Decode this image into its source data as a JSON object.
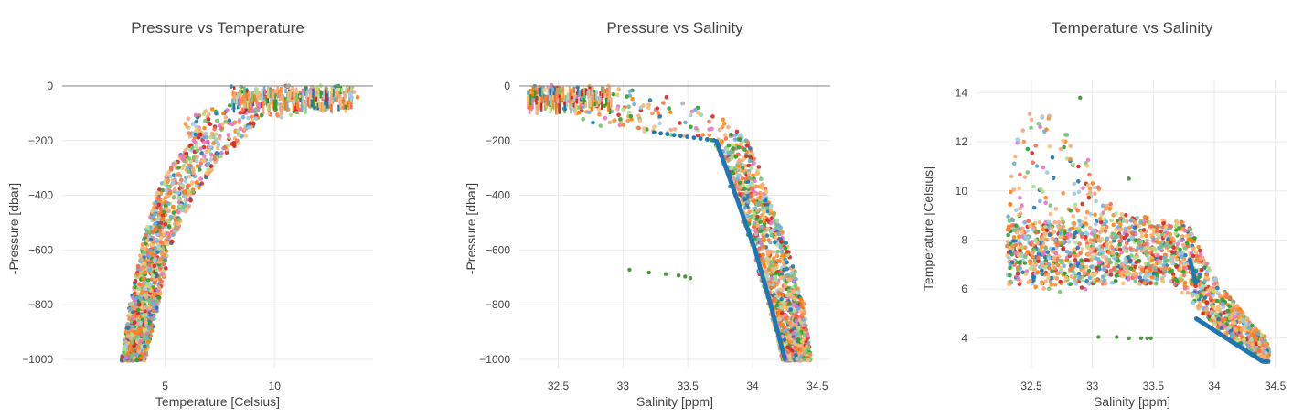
{
  "chart_data": [
    {
      "type": "scatter",
      "title": "Pressure vs Temperature",
      "xlabel": "Temperature [Celsius]",
      "ylabel": "-Pressure [dbar]",
      "xlim": [
        0.3,
        14.5
      ],
      "ylim": [
        -1030,
        20
      ],
      "xticks": [
        5,
        10
      ],
      "yticks": [
        0,
        -200,
        -400,
        -600,
        -800,
        -1000
      ],
      "xticklabels": [
        "5",
        "10"
      ],
      "yticklabels": [
        "0",
        "−200",
        "−400",
        "−600",
        "−800",
        "−1000"
      ],
      "grid": true,
      "reference_line": {
        "y": 0
      },
      "envelope": [
        {
          "y": -1000,
          "xmin": 3.0,
          "xmax": 4.1
        },
        {
          "y": -800,
          "xmin": 3.4,
          "xmax": 4.7
        },
        {
          "y": -600,
          "xmin": 3.9,
          "xmax": 5.2
        },
        {
          "y": -400,
          "xmin": 4.6,
          "xmax": 6.3
        },
        {
          "y": -300,
          "xmin": 5.2,
          "xmax": 7.2
        },
        {
          "y": -200,
          "xmin": 6.2,
          "xmax": 8.5
        },
        {
          "y": -120,
          "xmin": 5.8,
          "xmax": 9.5
        },
        {
          "y": -80,
          "xmin": 7.0,
          "xmax": 13.5
        },
        {
          "y": -60,
          "xmin": 8.2,
          "xmax": 14.0
        },
        {
          "y": 0,
          "xmin": 8.0,
          "xmax": 13.5
        }
      ],
      "outliers": []
    },
    {
      "type": "scatter",
      "title": "Pressure vs Salinity",
      "xlabel": "Salinity [ppm]",
      "ylabel": "-Pressure [dbar]",
      "xlim": [
        32.2,
        34.6
      ],
      "ylim": [
        -1030,
        20
      ],
      "xticks": [
        32.5,
        33,
        33.5,
        34,
        34.5
      ],
      "yticks": [
        0,
        -200,
        -400,
        -600,
        -800,
        -1000
      ],
      "xticklabels": [
        "32.5",
        "33",
        "33.5",
        "34",
        "34.5"
      ],
      "yticklabels": [
        "0",
        "−200",
        "−400",
        "−600",
        "−800",
        "−1000"
      ],
      "grid": true,
      "reference_line": {
        "y": 0
      },
      "envelope": [
        {
          "y": -1000,
          "xmin": 34.23,
          "xmax": 34.45
        },
        {
          "y": -800,
          "xmin": 34.12,
          "xmax": 34.4
        },
        {
          "y": -600,
          "xmin": 34.0,
          "xmax": 34.28
        },
        {
          "y": -400,
          "xmin": 33.85,
          "xmax": 34.12
        },
        {
          "y": -200,
          "xmin": 33.7,
          "xmax": 33.98
        },
        {
          "y": -150,
          "xmin": 32.9,
          "xmax": 33.92
        },
        {
          "y": -100,
          "xmin": 32.45,
          "xmax": 33.75
        },
        {
          "y": -50,
          "xmin": 32.25,
          "xmax": 33.4
        },
        {
          "y": 0,
          "xmin": 32.25,
          "xmax": 32.9
        }
      ],
      "outliers": [
        {
          "x": 33.05,
          "y": -672
        },
        {
          "x": 33.2,
          "y": -682
        },
        {
          "x": 33.33,
          "y": -688
        },
        {
          "x": 33.43,
          "y": -693
        },
        {
          "x": 33.48,
          "y": -697
        },
        {
          "x": 33.52,
          "y": -703
        }
      ]
    },
    {
      "type": "scatter",
      "title": "Temperature vs Salinity",
      "xlabel": "Salinity [ppm]",
      "ylabel": "Temperature [Celsius]",
      "xlim": [
        32.05,
        34.6
      ],
      "ylim": [
        2.8,
        14.5
      ],
      "xticks": [
        32.5,
        33,
        33.5,
        34,
        34.5
      ],
      "yticks": [
        4,
        6,
        8,
        10,
        12,
        14
      ],
      "xticklabels": [
        "32.5",
        "33",
        "33.5",
        "34",
        "34.5"
      ],
      "yticklabels": [
        "4",
        "6",
        "8",
        "10",
        "12",
        "14"
      ],
      "grid": true,
      "envelope": [
        {
          "sal": 32.3,
          "tmin": 7.5,
          "tmax": 11.2
        },
        {
          "sal": 32.5,
          "tmin": 6.0,
          "tmax": 13.7
        },
        {
          "sal": 32.8,
          "tmin": 5.8,
          "tmax": 12.9
        },
        {
          "sal": 33.2,
          "tmin": 6.2,
          "tmax": 9.2
        },
        {
          "sal": 33.6,
          "tmin": 6.5,
          "tmax": 8.8
        },
        {
          "sal": 33.8,
          "tmin": 5.5,
          "tmax": 8.5
        },
        {
          "sal": 34.0,
          "tmin": 4.5,
          "tmax": 6.5
        },
        {
          "sal": 34.3,
          "tmin": 3.4,
          "tmax": 4.6
        },
        {
          "sal": 34.45,
          "tmin": 3.0,
          "tmax": 3.9
        }
      ],
      "outliers": [
        {
          "x": 33.05,
          "y": 4.05
        },
        {
          "x": 33.2,
          "y": 4.05
        },
        {
          "x": 33.3,
          "y": 4.0
        },
        {
          "x": 33.4,
          "y": 4.0
        },
        {
          "x": 33.45,
          "y": 4.0
        },
        {
          "x": 33.48,
          "y": 4.0
        },
        {
          "x": 33.3,
          "y": 10.5
        },
        {
          "x": 32.9,
          "y": 13.8
        }
      ]
    }
  ],
  "palette": [
    "#1f77b4",
    "#ff7f0e",
    "#2ca02c",
    "#d62728",
    "#fd8d3c",
    "#fdae6b",
    "#74c476",
    "#9ecae1",
    "#e377c2",
    "#fb6a4a",
    "#6baed6",
    "#f4a582",
    "#b2df8a",
    "#fdbf6f"
  ],
  "colors": {
    "grid": "#ebebeb",
    "zero_line": "#7f7f7f",
    "text": "#444444",
    "deep_series": "#1f77b4",
    "outlier_series": "#4a9a3c"
  }
}
